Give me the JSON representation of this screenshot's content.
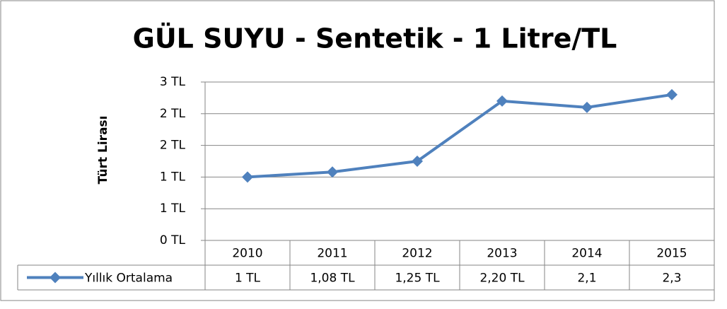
{
  "chart_data": {
    "type": "line",
    "title": "GÜL SUYU - Sentetik - 1 Litre/TL",
    "y_label": "Türt Lirası",
    "categories": [
      "2010",
      "2011",
      "2012",
      "2013",
      "2014",
      "2015"
    ],
    "series": [
      {
        "name": "Yıllık Ortalama",
        "color": "#4f81bd",
        "values": [
          1,
          1.08,
          1.25,
          2.2,
          2.1,
          2.3
        ],
        "value_labels": [
          "1 TL",
          "1,08 TL",
          "1,25 TL",
          "2,20 TL",
          "2,1",
          "2,3"
        ]
      }
    ],
    "ylim": [
      0,
      2.5
    ],
    "yticks": [
      {
        "value": 0,
        "label": "0 TL"
      },
      {
        "value": 0.5,
        "label": "1 TL"
      },
      {
        "value": 1,
        "label": "1 TL"
      },
      {
        "value": 1.5,
        "label": "2 TL"
      },
      {
        "value": 2,
        "label": "2 TL"
      },
      {
        "value": 2.5,
        "label": "3 TL"
      }
    ],
    "grid": true
  }
}
